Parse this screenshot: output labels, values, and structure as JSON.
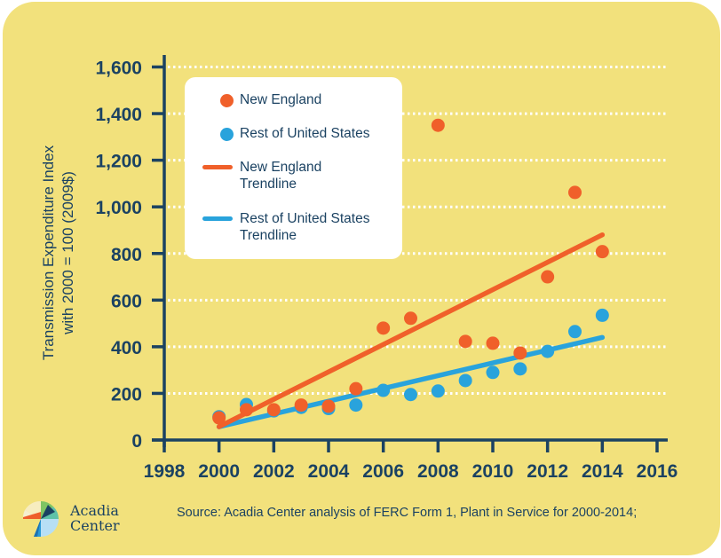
{
  "chart_data": {
    "type": "scatter",
    "title": "",
    "xlabel": "",
    "ylabel": "Transmission Expenditure Index with 2000 = 100 (2009$)",
    "ylabel_lines": [
      "Transmission Expenditure Index",
      "with 2000 = 100 (2009$)"
    ],
    "xlim": [
      1998,
      2016
    ],
    "ylim": [
      0,
      1600
    ],
    "x_ticks": [
      1998,
      2000,
      2002,
      2004,
      2006,
      2008,
      2010,
      2012,
      2014,
      2016
    ],
    "y_ticks": [
      0,
      200,
      400,
      600,
      800,
      1000,
      1200,
      1400,
      1600
    ],
    "y_tick_labels": [
      "0",
      "200",
      "400",
      "600",
      "800",
      "1,000",
      "1,200",
      "1,400",
      "1,600"
    ],
    "grid": "horizontal dotted",
    "legend_position": "top-left",
    "x": [
      2000,
      2001,
      2002,
      2003,
      2004,
      2005,
      2006,
      2007,
      2008,
      2009,
      2010,
      2011,
      2012,
      2013,
      2014
    ],
    "series": [
      {
        "name": "Rest of United States",
        "kind": "points",
        "color": "#29a3dc",
        "values": [
          100,
          152,
          125,
          140,
          135,
          150,
          213,
          195,
          210,
          255,
          290,
          305,
          380,
          465,
          535
        ]
      },
      {
        "name": "New England",
        "kind": "points",
        "color": "#f0602a",
        "values": [
          95,
          130,
          130,
          150,
          145,
          220,
          480,
          522,
          1350,
          423,
          415,
          373,
          700,
          1062,
          808
        ]
      },
      {
        "name": "Rest of United States Trendline",
        "kind": "line",
        "color": "#29a3dc",
        "x": [
          2000,
          2014
        ],
        "values": [
          57,
          440
        ]
      },
      {
        "name": "New England Trendline",
        "kind": "line",
        "color": "#f0602a",
        "x": [
          2000,
          2014
        ],
        "values": [
          57,
          880
        ]
      }
    ]
  },
  "legend": {
    "items": [
      {
        "label": "New England",
        "type": "dot",
        "color": "#f0602a"
      },
      {
        "label": "Rest of United States",
        "type": "dot",
        "color": "#29a3dc"
      },
      {
        "label": "New England Trendline",
        "lines": [
          "New England",
          "Trendline"
        ],
        "type": "line",
        "color": "#f0602a"
      },
      {
        "label": "Rest of United States Trendline",
        "lines": [
          "Rest of United States",
          "Trendline"
        ],
        "type": "line",
        "color": "#29a3dc"
      }
    ]
  },
  "colors": {
    "background": "#f2e17c",
    "axis": "#1b4262",
    "grid": "#ffffff",
    "new_england": "#f0602a",
    "rest_of_us": "#29a3dc"
  },
  "logo": {
    "name_line1": "Acadia",
    "name_line2": "Center"
  },
  "source": "Source: Acadia Center analysis of FERC Form 1, Plant in Service for 2000-2014;"
}
